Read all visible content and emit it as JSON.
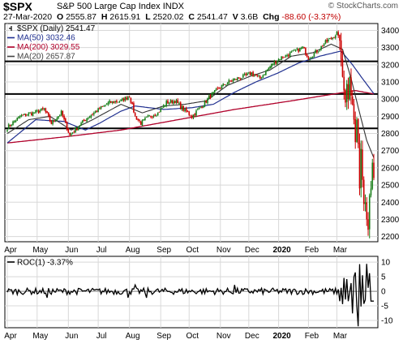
{
  "header": {
    "symbol": "$SPX",
    "name": "S&P 500 Large Cap Index",
    "exchange": "INDX",
    "watermark": "© StockCharts.com",
    "date": "27-Mar-2020",
    "open_label": "O",
    "open": "2555.87",
    "high_label": "H",
    "high": "2615.91",
    "low_label": "L",
    "low": "2520.02",
    "close_label": "C",
    "close": "2541.47",
    "volume_label": "V",
    "volume": "3.6B",
    "change_label": "Chg",
    "change": "-88.60 (-3.37%)"
  },
  "colors": {
    "price": "#000000",
    "up_candle": "#1a7f1a",
    "down_candle": "#cc0000",
    "ma50": "#1f2f8f",
    "ma200": "#b0002a",
    "ma20": "#333333",
    "roc": "#000000"
  },
  "chart_data": [
    {
      "type": "candlestick",
      "title": "",
      "legend": [
        {
          "name": "$SPX (Daily) 2541.47",
          "color": "#000000"
        },
        {
          "name": "MA(50) 3032.46",
          "color": "#1f2f8f"
        },
        {
          "name": "MA(200) 3029.55",
          "color": "#b0002a"
        },
        {
          "name": "MA(20) 2657.87",
          "color": "#444444"
        }
      ],
      "legend_position": "top-left",
      "x_ticks": [
        "Apr",
        "May",
        "Jun",
        "Jul",
        "Aug",
        "Sep",
        "Oct",
        "Nov",
        "Dec",
        "2020",
        "Feb",
        "Mar"
      ],
      "y_ticks": [
        2200,
        2300,
        2400,
        2500,
        2600,
        2700,
        2800,
        2900,
        3000,
        3100,
        3200,
        3300,
        3400
      ],
      "ylim": [
        2170,
        3440
      ],
      "y_axis_side": "right",
      "grid": true,
      "horizontal_lines": [
        3220,
        3030,
        2830
      ],
      "price_anchors": [
        {
          "t": 0,
          "v": 2835
        },
        {
          "t": 9,
          "v": 2900
        },
        {
          "t": 18,
          "v": 2920
        },
        {
          "t": 26,
          "v": 2940
        },
        {
          "t": 31,
          "v": 2860
        },
        {
          "t": 38,
          "v": 2920
        },
        {
          "t": 44,
          "v": 2790
        },
        {
          "t": 50,
          "v": 2840
        },
        {
          "t": 56,
          "v": 2890
        },
        {
          "t": 62,
          "v": 2925
        },
        {
          "t": 68,
          "v": 2960
        },
        {
          "t": 72,
          "v": 2980
        },
        {
          "t": 80,
          "v": 2990
        },
        {
          "t": 86,
          "v": 3020
        },
        {
          "t": 90,
          "v": 2900
        },
        {
          "t": 94,
          "v": 2860
        },
        {
          "t": 100,
          "v": 2900
        },
        {
          "t": 106,
          "v": 2920
        },
        {
          "t": 112,
          "v": 2980
        },
        {
          "t": 118,
          "v": 2990
        },
        {
          "t": 124,
          "v": 2940
        },
        {
          "t": 130,
          "v": 2900
        },
        {
          "t": 137,
          "v": 2960
        },
        {
          "t": 142,
          "v": 3010
        },
        {
          "t": 150,
          "v": 3070
        },
        {
          "t": 158,
          "v": 3110
        },
        {
          "t": 166,
          "v": 3130
        },
        {
          "t": 172,
          "v": 3150
        },
        {
          "t": 178,
          "v": 3120
        },
        {
          "t": 186,
          "v": 3200
        },
        {
          "t": 192,
          "v": 3240
        },
        {
          "t": 198,
          "v": 3260
        },
        {
          "t": 203,
          "v": 3280
        },
        {
          "t": 208,
          "v": 3300
        },
        {
          "t": 212,
          "v": 3240
        },
        {
          "t": 218,
          "v": 3280
        },
        {
          "t": 224,
          "v": 3330
        },
        {
          "t": 229,
          "v": 3360
        },
        {
          "t": 232,
          "v": 3385
        },
        {
          "t": 233,
          "v": 3370
        },
        {
          "t": 234,
          "v": 3340
        },
        {
          "t": 235,
          "v": 3230
        },
        {
          "t": 236,
          "v": 3130
        },
        {
          "t": 237,
          "v": 3050
        },
        {
          "t": 238,
          "v": 2980
        },
        {
          "t": 239,
          "v": 3090
        },
        {
          "t": 240,
          "v": 3000
        },
        {
          "t": 241,
          "v": 3130
        },
        {
          "t": 242,
          "v": 3020
        },
        {
          "t": 243,
          "v": 2970
        },
        {
          "t": 244,
          "v": 2880
        },
        {
          "t": 245,
          "v": 2750
        },
        {
          "t": 246,
          "v": 2880
        },
        {
          "t": 247,
          "v": 2740
        },
        {
          "t": 248,
          "v": 2480
        },
        {
          "t": 249,
          "v": 2710
        },
        {
          "t": 250,
          "v": 2530
        },
        {
          "t": 251,
          "v": 2390
        },
        {
          "t": 252,
          "v": 2400
        },
        {
          "t": 253,
          "v": 2300
        },
        {
          "t": 254,
          "v": 2240
        },
        {
          "t": 255,
          "v": 2440
        },
        {
          "t": 256,
          "v": 2480
        },
        {
          "t": 257,
          "v": 2630
        },
        {
          "t": 258,
          "v": 2541
        }
      ],
      "ma50": [
        {
          "t": 0,
          "v": 2745
        },
        {
          "t": 20,
          "v": 2880
        },
        {
          "t": 40,
          "v": 2870
        },
        {
          "t": 55,
          "v": 2820
        },
        {
          "t": 65,
          "v": 2860
        },
        {
          "t": 80,
          "v": 2930
        },
        {
          "t": 90,
          "v": 2960
        },
        {
          "t": 110,
          "v": 2940
        },
        {
          "t": 130,
          "v": 2950
        },
        {
          "t": 145,
          "v": 2970
        },
        {
          "t": 160,
          "v": 3040
        },
        {
          "t": 175,
          "v": 3100
        },
        {
          "t": 190,
          "v": 3150
        },
        {
          "t": 205,
          "v": 3210
        },
        {
          "t": 220,
          "v": 3250
        },
        {
          "t": 235,
          "v": 3280
        },
        {
          "t": 243,
          "v": 3200
        },
        {
          "t": 250,
          "v": 3120
        },
        {
          "t": 258,
          "v": 3032
        }
      ],
      "ma200": [
        {
          "t": 0,
          "v": 2745
        },
        {
          "t": 40,
          "v": 2780
        },
        {
          "t": 80,
          "v": 2820
        },
        {
          "t": 120,
          "v": 2880
        },
        {
          "t": 160,
          "v": 2940
        },
        {
          "t": 200,
          "v": 2990
        },
        {
          "t": 230,
          "v": 3030
        },
        {
          "t": 245,
          "v": 3050
        },
        {
          "t": 258,
          "v": 3030
        }
      ],
      "ma20": [
        {
          "t": 0,
          "v": 2800
        },
        {
          "t": 15,
          "v": 2880
        },
        {
          "t": 30,
          "v": 2900
        },
        {
          "t": 45,
          "v": 2820
        },
        {
          "t": 60,
          "v": 2880
        },
        {
          "t": 80,
          "v": 2970
        },
        {
          "t": 95,
          "v": 2920
        },
        {
          "t": 110,
          "v": 2960
        },
        {
          "t": 125,
          "v": 2970
        },
        {
          "t": 140,
          "v": 2990
        },
        {
          "t": 155,
          "v": 3080
        },
        {
          "t": 170,
          "v": 3130
        },
        {
          "t": 185,
          "v": 3170
        },
        {
          "t": 200,
          "v": 3250
        },
        {
          "t": 215,
          "v": 3270
        },
        {
          "t": 228,
          "v": 3320
        },
        {
          "t": 236,
          "v": 3290
        },
        {
          "t": 242,
          "v": 3120
        },
        {
          "t": 248,
          "v": 2920
        },
        {
          "t": 253,
          "v": 2760
        },
        {
          "t": 258,
          "v": 2658
        }
      ]
    },
    {
      "type": "line",
      "title": "",
      "legend": [
        {
          "name": "ROC(1) -3.37%",
          "color": "#000000"
        }
      ],
      "legend_position": "top-left",
      "y_ticks": [
        -10,
        -5,
        0,
        5,
        10
      ],
      "ylim": [
        -12.5,
        12
      ],
      "y_axis_side": "right",
      "grid": true,
      "roc_spikes": [
        {
          "t": 234,
          "v": -3.4
        },
        {
          "t": 235,
          "v": 1.2
        },
        {
          "t": 236,
          "v": -4.4
        },
        {
          "t": 237,
          "v": 4.6
        },
        {
          "t": 238,
          "v": -2.8
        },
        {
          "t": 239,
          "v": 4.2
        },
        {
          "t": 240,
          "v": -3.4
        },
        {
          "t": 241,
          "v": -0.5
        },
        {
          "t": 242,
          "v": 2.8
        },
        {
          "t": 243,
          "v": -7.6
        },
        {
          "t": 244,
          "v": 5.0
        },
        {
          "t": 245,
          "v": 6.5
        },
        {
          "t": 246,
          "v": -4.9
        },
        {
          "t": 247,
          "v": -12.0
        },
        {
          "t": 248,
          "v": 9.3
        },
        {
          "t": 249,
          "v": -5.2
        },
        {
          "t": 250,
          "v": 5.5
        },
        {
          "t": 251,
          "v": -4.3
        },
        {
          "t": 252,
          "v": -2.9
        },
        {
          "t": 253,
          "v": 9.4
        },
        {
          "t": 254,
          "v": 1.2
        },
        {
          "t": 255,
          "v": 6.2
        },
        {
          "t": 256,
          "v": -3.37
        }
      ]
    }
  ],
  "x_axis_labels": [
    "Apr",
    "May",
    "Jun",
    "Jul",
    "Aug",
    "Sep",
    "Oct",
    "Nov",
    "Dec",
    "2020",
    "Feb",
    "Mar"
  ]
}
